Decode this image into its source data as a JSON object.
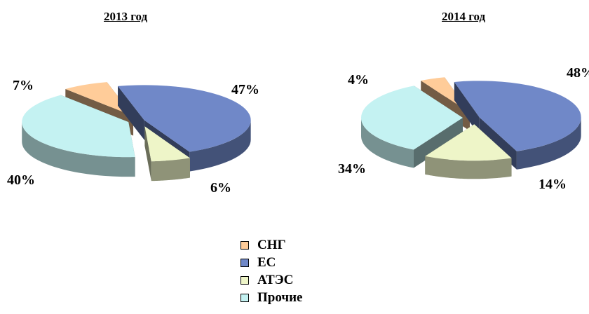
{
  "chart_data": [
    {
      "type": "pie",
      "title": "2013 год",
      "categories": [
        "СНГ",
        "ЕС",
        "АТЭС",
        "Прочие"
      ],
      "values": [
        7,
        47,
        6,
        40
      ],
      "labels": [
        "7%",
        "47%",
        "6%",
        "40%"
      ],
      "style": "3d-exploded"
    },
    {
      "type": "pie",
      "title": "2014 год",
      "categories": [
        "СНГ",
        "ЕС",
        "АТЭС",
        "Прочие"
      ],
      "values": [
        4,
        48,
        14,
        34
      ],
      "labels": [
        "4%",
        "48%",
        "14%",
        "34%"
      ],
      "style": "3d-exploded"
    }
  ],
  "legend": {
    "placement": "bottom-center",
    "items": [
      {
        "label": "СНГ",
        "color": "#FFCC99"
      },
      {
        "label": "ЕС",
        "color": "#7088C8"
      },
      {
        "label": "АТЭС",
        "color": "#EEF5C8"
      },
      {
        "label": "Прочие",
        "color": "#C4F2F2"
      }
    ]
  }
}
